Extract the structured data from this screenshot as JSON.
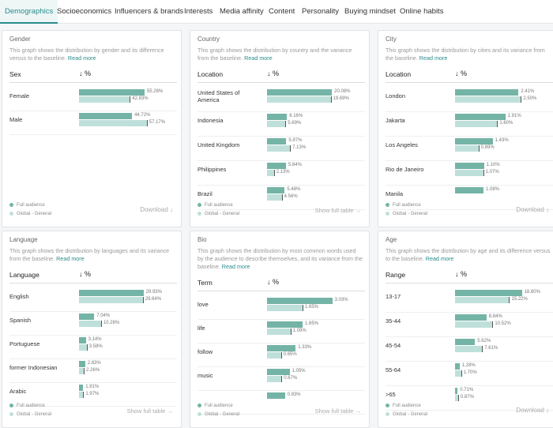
{
  "tabs": [
    "Demographics",
    "Socioeconomics",
    "Influencers & brands",
    "Interests",
    "Media affinity",
    "Content",
    "Personality",
    "Buying mindset",
    "Online habits"
  ],
  "legend": {
    "full": "Full audience",
    "global": "Global - General"
  },
  "colors": {
    "full": "#74b4a6",
    "global": "#bfe0da",
    "accent": "#2a8b8b"
  },
  "cards": [
    {
      "title": "Gender",
      "desc": "This graph shows the distribution by gender and its difference versus to the baseline.",
      "read_more": "Read more",
      "col": "Sex",
      "sort": "↓ %",
      "footer": "Download ↓",
      "rows": [
        {
          "label": "Female",
          "a": 55.28,
          "b": 42.83,
          "a_text": "55.28%",
          "b_text": "42.83%"
        },
        {
          "label": "Male",
          "a": 44.72,
          "b": 57.17,
          "a_text": "44.72%",
          "b_text": "57.17%"
        }
      ],
      "max": 60
    },
    {
      "title": "Country",
      "desc": "This graph shows the distribution by country and the variance from the baseline.",
      "read_more": "Read more",
      "col": "Location",
      "sort": "↓ %",
      "footer": "Show full table →",
      "rows": [
        {
          "label": "United States of America",
          "a": 20.08,
          "b": 19.69,
          "a_text": "20.08%",
          "b_text": "19.69%"
        },
        {
          "label": "Indonesia",
          "a": 6.16,
          "b": 5.69,
          "a_text": "6.16%",
          "b_text": "5.69%"
        },
        {
          "label": "United Kingdom",
          "a": 5.97,
          "b": 7.13,
          "a_text": "5.97%",
          "b_text": "7.13%"
        },
        {
          "label": "Philippines",
          "a": 5.84,
          "b": 2.13,
          "a_text": "5.84%",
          "b_text": "2.13%"
        },
        {
          "label": "Brazil",
          "a": 5.48,
          "b": 4.56,
          "a_text": "5.48%",
          "b_text": "4.56%"
        }
      ],
      "max": 22
    },
    {
      "title": "City",
      "desc": "This graph shows the distribution by cities and its variance from the baseline.",
      "read_more": "Read more",
      "col": "Location",
      "sort": "↓ %",
      "footer": "Download ↓",
      "rows": [
        {
          "label": "London",
          "a": 2.41,
          "b": 2.5,
          "a_text": "2.41%",
          "b_text": "2.50%"
        },
        {
          "label": "Jakarta",
          "a": 1.91,
          "b": 1.6,
          "a_text": "1.91%",
          "b_text": "1.60%"
        },
        {
          "label": "Los Angeles",
          "a": 1.43,
          "b": 0.89,
          "a_text": "1.43%",
          "b_text": "0.89%"
        },
        {
          "label": "Rio de Janeiro",
          "a": 1.1,
          "b": 1.07,
          "a_text": "1.10%",
          "b_text": "1.07%"
        },
        {
          "label": "Manila",
          "a": 1.08,
          "b": 0,
          "a_text": "1.08%",
          "b_text": ""
        }
      ],
      "max": 2.7
    },
    {
      "title": "Language",
      "desc": "This graph shows the distribution by languages and its variance from the baseline.",
      "read_more": "Read more",
      "col": "Language",
      "sort": "↓ %",
      "footer": "Show full table →",
      "rows": [
        {
          "label": "English",
          "a": 29.93,
          "b": 29.64,
          "a_text": "29.93%",
          "b_text": "29.64%"
        },
        {
          "label": "Spanish",
          "a": 7.04,
          "b": 10.26,
          "a_text": "7.04%",
          "b_text": "10.26%"
        },
        {
          "label": "Portuguese",
          "a": 3.14,
          "b": 3.58,
          "a_text": "3.14%",
          "b_text": "3.58%"
        },
        {
          "label": "former Indonesian",
          "a": 2.83,
          "b": 2.26,
          "a_text": "2.83%",
          "b_text": "2.26%"
        },
        {
          "label": "Arabic",
          "a": 1.91,
          "b": 1.97,
          "a_text": "1.91%",
          "b_text": "1.97%"
        }
      ],
      "max": 33
    },
    {
      "title": "Bio",
      "desc": "This graph shows the distribution by most common words used by the audience to describe themselves, and its variance from the baseline.",
      "read_more": "Read more",
      "col": "Term",
      "sort": "↓ %",
      "footer": "Show full table →",
      "rows": [
        {
          "label": "love",
          "a": 3.03,
          "b": 1.65,
          "a_text": "3.03%",
          "b_text": "1.65%"
        },
        {
          "label": "life",
          "a": 1.65,
          "b": 1.09,
          "a_text": "1.65%",
          "b_text": "1.09%"
        },
        {
          "label": "follow",
          "a": 1.33,
          "b": 0.65,
          "a_text": "1.33%",
          "b_text": "0.65%"
        },
        {
          "label": "music",
          "a": 1.05,
          "b": 0.67,
          "a_text": "1.05%",
          "b_text": "0.67%"
        },
        {
          "label": "",
          "a": 0.83,
          "b": 0,
          "a_text": "0.83%",
          "b_text": ""
        }
      ],
      "max": 3.3
    },
    {
      "title": "Age",
      "desc": "This graph shows the distribution by age and its difference versus to the baseline.",
      "read_more": "Read more",
      "col": "Range",
      "sort": "↓ %",
      "footer": "Download ↓",
      "rows": [
        {
          "label": "13-17",
          "a": 18.8,
          "b": 15.22,
          "a_text": "18.80%",
          "b_text": "15.22%"
        },
        {
          "label": "35-44",
          "a": 8.84,
          "b": 10.52,
          "a_text": "8.84%",
          "b_text": "10.52%"
        },
        {
          "label": "45-54",
          "a": 5.62,
          "b": 7.61,
          "a_text": "5.62%",
          "b_text": "7.61%"
        },
        {
          "label": "55-64",
          "a": 1.28,
          "b": 1.7,
          "a_text": "1.28%",
          "b_text": "1.70%"
        },
        {
          "label": ">65",
          "a": 0.71,
          "b": 0.87,
          "a_text": "0.71%",
          "b_text": "0.87%"
        }
      ],
      "max": 20
    }
  ]
}
